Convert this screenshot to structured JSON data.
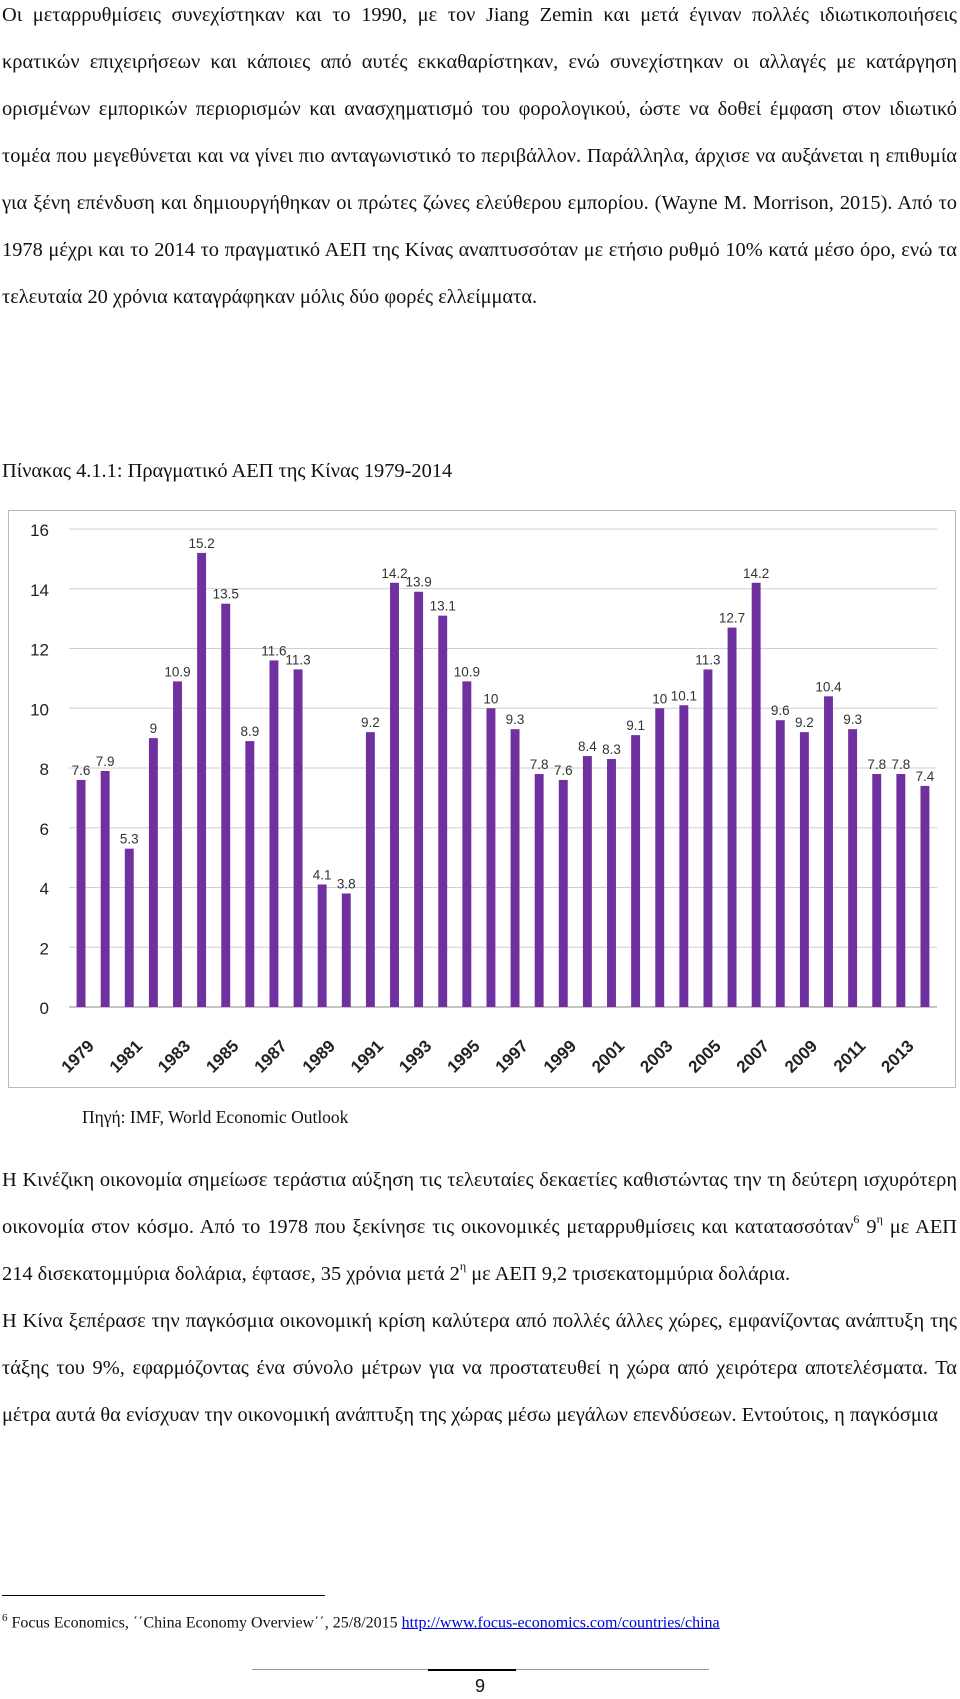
{
  "paragraph1": {
    "text": "Οι μεταρρυθμίσεις συνεχίστηκαν και το 1990, με τον Jiang Zemin και μετά έγιναν πολλές ιδιωτικοποιήσεις κρατικών επιχειρήσεων και κάποιες από αυτές εκκαθαρίστηκαν, ενώ συνεχίστηκαν οι αλλαγές με κατάργηση ορισμένων εμπορικών περιορισμών και ανασχηματισμό του φορολογικού, ώστε να δοθεί έμφαση στον ιδιωτικό τομέα που μεγεθύνεται και να γίνει πιο ανταγωνιστικό το περιβάλλον. Παράλληλα, άρχισε να αυξάνεται η επιθυμία για ξένη επένδυση και δημιουργήθηκαν οι πρώτες ζώνες ελεύθερου εμπορίου. (Wayne M. Morrison, 2015). Από το 1978 μέχρι και το 2014 το πραγματικό ΑΕΠ της Κίνας αναπτυσσόταν με ετήσιο ρυθμό 10% κατά μέσο όρο, ενώ τα τελευταία 20 χρόνια καταγράφηκαν μόλις δύο φορές ελλείμματα."
  },
  "table_caption": "Πίνακας 4.1.1: Πραγματικό ΑΕΠ της Κίνας 1979-2014",
  "chart_data": {
    "type": "bar",
    "title": "",
    "xlabel": "",
    "ylabel": "",
    "ylim": [
      0,
      16
    ],
    "yticks": [
      0,
      2,
      4,
      6,
      8,
      10,
      12,
      14,
      16
    ],
    "grid": true,
    "legend": "none",
    "bar_color": "#7030a0",
    "categories": [
      "1979",
      "1980",
      "1981",
      "1982",
      "1983",
      "1984",
      "1985",
      "1986",
      "1987",
      "1988",
      "1989",
      "1990",
      "1991",
      "1992",
      "1993",
      "1994",
      "1995",
      "1996",
      "1997",
      "1998",
      "1999",
      "2000",
      "2001",
      "2002",
      "2003",
      "2004",
      "2005",
      "2006",
      "2007",
      "2008",
      "2009",
      "2010",
      "2011",
      "2012",
      "2013",
      "2014"
    ],
    "xtick_labels": [
      "1979",
      "1981",
      "1983",
      "1985",
      "1987",
      "1989",
      "1991",
      "1993",
      "1995",
      "1997",
      "1999",
      "2001",
      "2003",
      "2005",
      "2007",
      "2009",
      "2011",
      "2013"
    ],
    "values": [
      7.6,
      7.9,
      5.3,
      9,
      10.9,
      15.2,
      13.5,
      8.9,
      11.6,
      11.3,
      4.1,
      3.8,
      9.2,
      14.2,
      13.9,
      13.1,
      10.9,
      10,
      9.3,
      7.8,
      7.6,
      8.4,
      8.3,
      9.1,
      10,
      10.1,
      11.3,
      12.7,
      14.2,
      9.6,
      9.2,
      10.4,
      9.3,
      7.8,
      7.8,
      7.4
    ],
    "data_labels": [
      "7.6",
      "7.9",
      "5.3",
      "9",
      "10.9",
      "15.2",
      "13.5",
      "8.9",
      "11.6",
      "11.3",
      "4.1",
      "3.8",
      "9.2",
      "14.2",
      "13.9",
      "13.1",
      "10.9",
      "10",
      "9.3",
      "7.8",
      "7.6",
      "8.4",
      "8.3",
      "9.1",
      "10",
      "10.1",
      "11.3",
      "12.7",
      "14.2",
      "9.6",
      "9.2",
      "10.4",
      "9.3",
      "7.8",
      "7.8",
      "7.4"
    ]
  },
  "source_note": "Πηγή: IMF, World Economic Outlook",
  "paragraph2": {
    "part1": "Η Κινέζικη οικονομία σημείωσε τεράστια αύξηση τις τελευταίες δεκαετίες καθιστώντας την τη δεύτερη ισχυρότερη οικονομία στον κόσμο. Από το 1978 που ξεκίνησε τις οικονομικές μεταρρυθμίσεις και κατατασσόταν",
    "footnote_ref": "6",
    "part2": " 9",
    "sup_eta1": "η",
    "part3": " με ΑΕΠ 214 δισεκατομμύρια δολάρια, έφτασε, 35 χρόνια μετά 2",
    "sup_eta2": "η",
    "part4": " με ΑΕΠ 9,2 τρισεκατομμύρια δολάρια."
  },
  "paragraph3": {
    "text": "Η Κίνα ξεπέρασε την παγκόσμια οικονομική κρίση καλύτερα από πολλές άλλες χώρες, εμφανίζοντας ανάπτυξη της τάξης του 9%, εφαρμόζοντας ένα σύνολο μέτρων για να προστατευθεί η χώρα από χειρότερα αποτελέσματα. Τα μέτρα αυτά θα ενίσχυαν την οικονομική ανάπτυξη της χώρας μέσω μεγάλων επενδύσεων. Εντούτοις, η παγκόσμια"
  },
  "footnote": {
    "number": "6",
    "text": " Focus Economics, ΄΄China Economy Overview΄΄, 25/8/2015 ",
    "link_text": "http://www.focus-economics.com/countries/china"
  },
  "page_number": "9"
}
